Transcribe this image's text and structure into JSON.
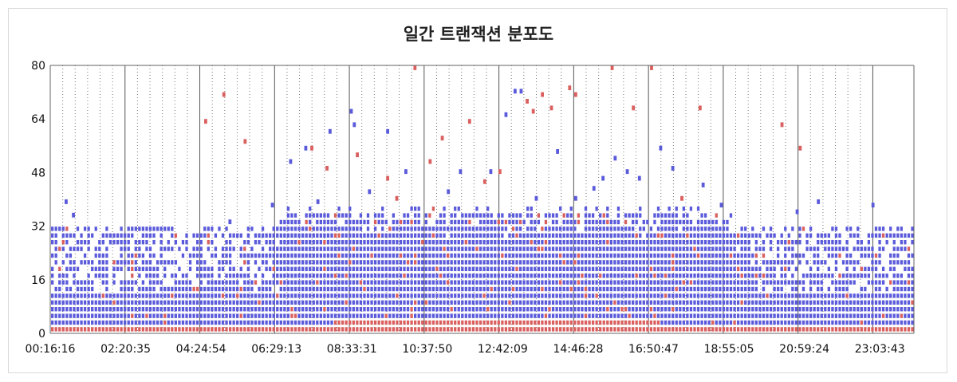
{
  "chart_data": {
    "type": "scatter",
    "title": "일간 트랜잭션 분포도",
    "xlabel": "",
    "ylabel": "",
    "ylim": [
      0,
      80
    ],
    "y_ticks": [
      "0",
      "16",
      "32",
      "48",
      "64",
      "80"
    ],
    "x_ticks": [
      "00:16:16",
      "02:20:35",
      "04:24:54",
      "06:29:13",
      "08:33:31",
      "10:37:50",
      "12:42:09",
      "14:46:28",
      "16:50:47",
      "18:55:05",
      "20:59:24",
      "23:03:43"
    ],
    "x_range_seconds": [
      976,
      86400
    ],
    "y_bin": 2,
    "grid": true,
    "colors": {
      "normal": "#5a5adb",
      "slow": "#d9605f",
      "gridline": "#888888",
      "axis": "#666666"
    },
    "series": [
      {
        "status": "normal",
        "description": "dense blue band of transaction cells from 0 to about 30 at every time bin; upper edge near 30 between 00:16 and 06:30 and between 20:00 and 24:00, rising to about 36 between 06:30 and 19:00",
        "outliers": [
          {
            "x": "00:40:00",
            "y": 39
          },
          {
            "x": "00:52:00",
            "y": 35
          },
          {
            "x": "05:10:00",
            "y": 33
          },
          {
            "x": "06:20:00",
            "y": 38
          },
          {
            "x": "06:50:00",
            "y": 51
          },
          {
            "x": "07:15:00",
            "y": 55
          },
          {
            "x": "07:35:00",
            "y": 39
          },
          {
            "x": "07:55:00",
            "y": 60
          },
          {
            "x": "08:30:00",
            "y": 66
          },
          {
            "x": "08:35:00",
            "y": 62
          },
          {
            "x": "09:00:00",
            "y": 42
          },
          {
            "x": "09:30:00",
            "y": 60
          },
          {
            "x": "10:00:00",
            "y": 48
          },
          {
            "x": "11:10:00",
            "y": 42
          },
          {
            "x": "11:30:00",
            "y": 48
          },
          {
            "x": "12:20:00",
            "y": 48
          },
          {
            "x": "12:45:00",
            "y": 65
          },
          {
            "x": "13:00:00",
            "y": 72
          },
          {
            "x": "13:10:00",
            "y": 72
          },
          {
            "x": "13:35:00",
            "y": 40
          },
          {
            "x": "14:10:00",
            "y": 54
          },
          {
            "x": "14:40:00",
            "y": 40
          },
          {
            "x": "15:10:00",
            "y": 43
          },
          {
            "x": "15:25:00",
            "y": 46
          },
          {
            "x": "15:45:00",
            "y": 52
          },
          {
            "x": "16:05:00",
            "y": 48
          },
          {
            "x": "16:25:00",
            "y": 46
          },
          {
            "x": "17:00:00",
            "y": 55
          },
          {
            "x": "17:20:00",
            "y": 49
          },
          {
            "x": "18:10:00",
            "y": 44
          },
          {
            "x": "18:40:00",
            "y": 38
          },
          {
            "x": "20:45:00",
            "y": 36
          },
          {
            "x": "21:20:00",
            "y": 39
          },
          {
            "x": "22:50:00",
            "y": 38
          }
        ]
      },
      {
        "status": "slow",
        "description": "red base band from 0 to about 2 everywhere, thickening to about 5 between 08:00 and 17:00; scattered red cells mixed into the blue band",
        "outliers": [
          {
            "x": "04:30:00",
            "y": 63
          },
          {
            "x": "05:00:00",
            "y": 71
          },
          {
            "x": "05:35:00",
            "y": 57
          },
          {
            "x": "07:25:00",
            "y": 55
          },
          {
            "x": "07:50:00",
            "y": 49
          },
          {
            "x": "08:40:00",
            "y": 53
          },
          {
            "x": "09:30:00",
            "y": 46
          },
          {
            "x": "09:45:00",
            "y": 40
          },
          {
            "x": "10:15:00",
            "y": 79
          },
          {
            "x": "10:40:00",
            "y": 51
          },
          {
            "x": "11:00:00",
            "y": 58
          },
          {
            "x": "11:45:00",
            "y": 63
          },
          {
            "x": "13:20:00",
            "y": 69
          },
          {
            "x": "13:30:00",
            "y": 66
          },
          {
            "x": "13:45:00",
            "y": 71
          },
          {
            "x": "14:00:00",
            "y": 67
          },
          {
            "x": "14:30:00",
            "y": 73
          },
          {
            "x": "14:40:00",
            "y": 71
          },
          {
            "x": "15:40:00",
            "y": 79
          },
          {
            "x": "16:15:00",
            "y": 67
          },
          {
            "x": "16:45:00",
            "y": 79
          },
          {
            "x": "17:35:00",
            "y": 40
          },
          {
            "x": "18:05:00",
            "y": 67
          },
          {
            "x": "20:20:00",
            "y": 62
          },
          {
            "x": "20:50:00",
            "y": 55
          },
          {
            "x": "12:10:00",
            "y": 45
          },
          {
            "x": "12:35:00",
            "y": 48
          }
        ]
      }
    ]
  }
}
